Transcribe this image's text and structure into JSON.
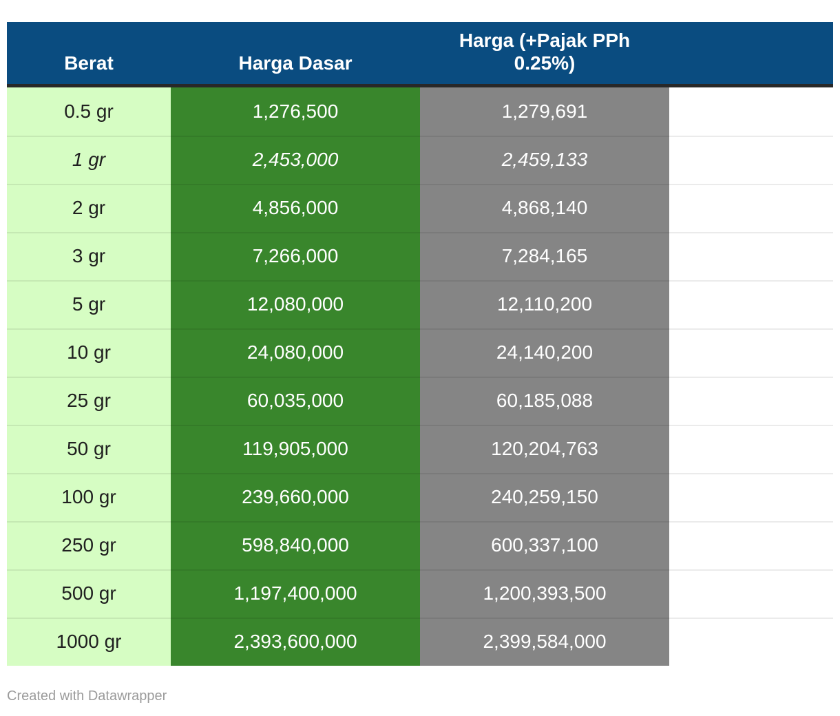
{
  "colors": {
    "header_background": "#0a4c80",
    "header_border_bottom": "#282828",
    "column_berat_background": "#d6fdc3",
    "column_harga_dasar_background": "#39862c",
    "column_harga_pajak_background": "#858585",
    "body_text_dark": "#202020",
    "body_text_light": "#ffffff",
    "row_separator": "rgba(0,0,0,0.08)",
    "attribution_text": "#9b9b9b"
  },
  "table": {
    "header": {
      "berat": "Berat",
      "harga_dasar": "Harga Dasar",
      "harga_pajak": "Harga (+Pajak PPh\n0.25%)"
    },
    "rows": [
      {
        "berat": "0.5 gr",
        "harga_dasar": "1,276,500",
        "harga_pajak": "1,279,691",
        "italic": false
      },
      {
        "berat": "1 gr",
        "harga_dasar": "2,453,000",
        "harga_pajak": "2,459,133",
        "italic": true
      },
      {
        "berat": "2 gr",
        "harga_dasar": "4,856,000",
        "harga_pajak": "4,868,140",
        "italic": false
      },
      {
        "berat": "3 gr",
        "harga_dasar": "7,266,000",
        "harga_pajak": "7,284,165",
        "italic": false
      },
      {
        "berat": "5 gr",
        "harga_dasar": "12,080,000",
        "harga_pajak": "12,110,200",
        "italic": false
      },
      {
        "berat": "10 gr",
        "harga_dasar": "24,080,000",
        "harga_pajak": "24,140,200",
        "italic": false
      },
      {
        "berat": "25 gr",
        "harga_dasar": "60,035,000",
        "harga_pajak": "60,185,088",
        "italic": false
      },
      {
        "berat": "50 gr",
        "harga_dasar": "119,905,000",
        "harga_pajak": "120,204,763",
        "italic": false
      },
      {
        "berat": "100 gr",
        "harga_dasar": "239,660,000",
        "harga_pajak": "240,259,150",
        "italic": false
      },
      {
        "berat": "250 gr",
        "harga_dasar": "598,840,000",
        "harga_pajak": "600,337,100",
        "italic": false
      },
      {
        "berat": "500 gr",
        "harga_dasar": "1,197,400,000",
        "harga_pajak": "1,200,393,500",
        "italic": false
      },
      {
        "berat": "1000 gr",
        "harga_dasar": "2,393,600,000",
        "harga_pajak": "2,399,584,000",
        "italic": false
      }
    ]
  },
  "footer": {
    "attribution": "Created with Datawrapper"
  },
  "chart_data": {
    "type": "table",
    "columns": [
      "Berat",
      "Harga Dasar",
      "Harga (+Pajak PPh 0.25%)"
    ],
    "rows": [
      [
        "0.5 gr",
        "1,276,500",
        "1,279,691"
      ],
      [
        "1 gr",
        "2,453,000",
        "2,459,133"
      ],
      [
        "2 gr",
        "4,856,000",
        "4,868,140"
      ],
      [
        "3 gr",
        "7,266,000",
        "7,284,165"
      ],
      [
        "5 gr",
        "12,080,000",
        "12,110,200"
      ],
      [
        "10 gr",
        "24,080,000",
        "24,140,200"
      ],
      [
        "25 gr",
        "60,035,000",
        "60,185,088"
      ],
      [
        "50 gr",
        "119,905,000",
        "120,204,763"
      ],
      [
        "100 gr",
        "239,660,000",
        "240,259,150"
      ],
      [
        "250 gr",
        "598,840,000",
        "600,337,100"
      ],
      [
        "500 gr",
        "1,197,400,000",
        "1,200,393,500"
      ],
      [
        "1000 gr",
        "2,393,600,000",
        "2,399,584,000"
      ]
    ],
    "notes": "Italic styling on the '1 gr' row; fourth table column is empty/unlabeled"
  }
}
